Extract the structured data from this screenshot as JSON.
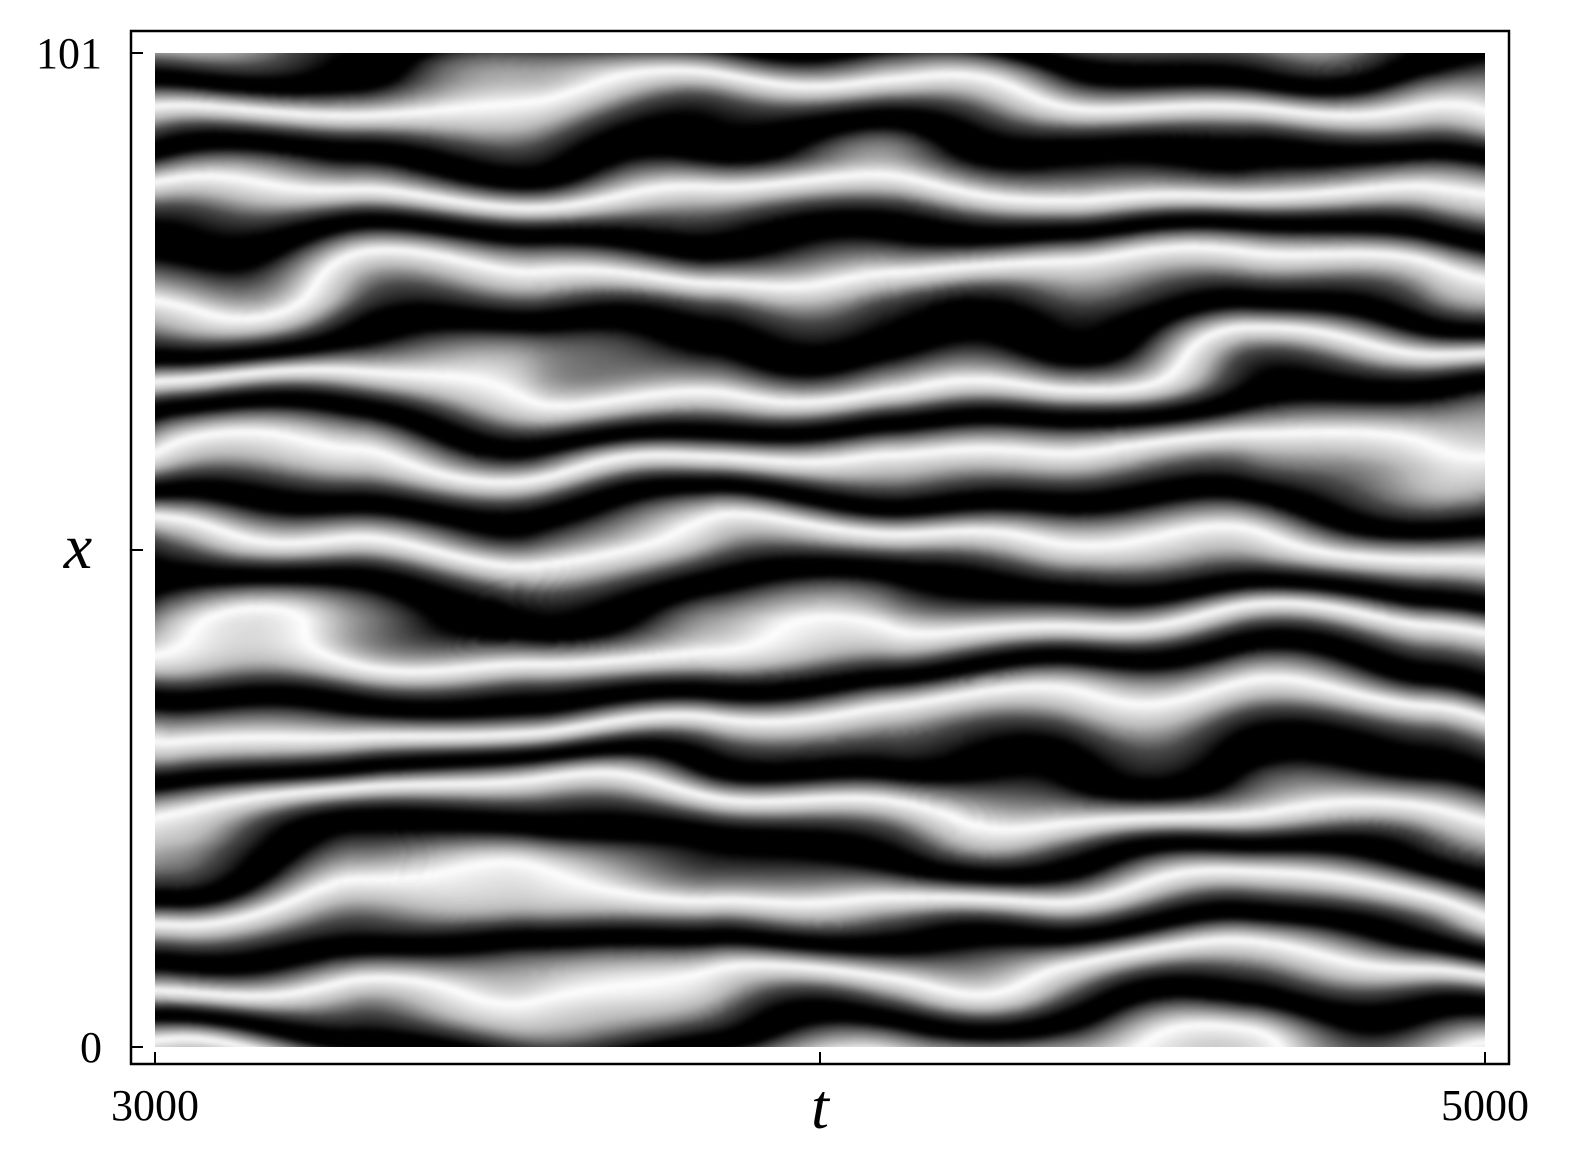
{
  "chart_data": {
    "type": "heatmap",
    "title": "",
    "xlabel": "t",
    "ylabel": "x",
    "xlim": [
      3000,
      5000
    ],
    "ylim": [
      0,
      101
    ],
    "x_ticks": [
      {
        "value": 3000,
        "label": "3000"
      },
      {
        "value": 4000,
        "label": ""
      },
      {
        "value": 5000,
        "label": "5000"
      }
    ],
    "y_ticks": [
      {
        "value": 0,
        "label": "0"
      },
      {
        "value": 50.5,
        "label": ""
      },
      {
        "value": 101,
        "label": "101"
      }
    ],
    "colormap": "grayscale",
    "colors": {
      "low": "#000000",
      "high": "#ffffff",
      "frame": "#000000"
    },
    "grid": false,
    "legend": "none"
  }
}
